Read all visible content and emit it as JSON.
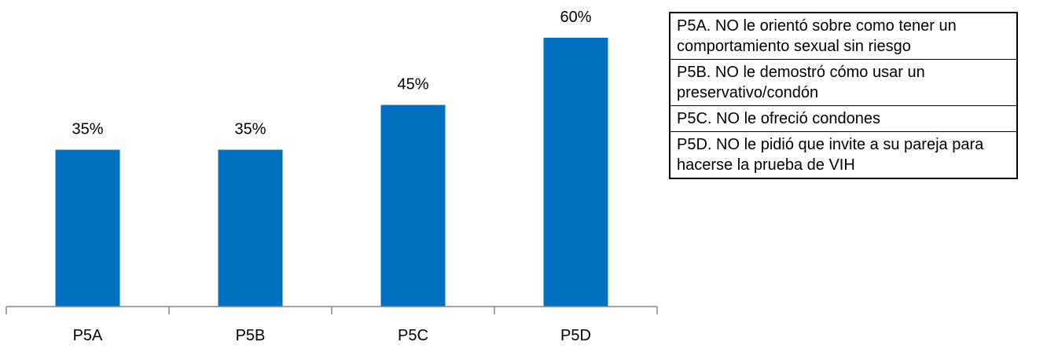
{
  "chart_data": {
    "type": "bar",
    "categories": [
      "P5A",
      "P5B",
      "P5C",
      "P5D"
    ],
    "values": [
      35,
      35,
      45,
      60
    ],
    "data_labels": [
      "35%",
      "35%",
      "45%",
      "60%"
    ],
    "ylim": [
      0,
      70
    ],
    "grid": false,
    "bar_color": "#0070C0",
    "axis_color": "#868686"
  },
  "legend_table": {
    "rows": [
      "P5A. NO le orientó sobre como tener un comportamiento sexual sin riesgo",
      "P5B. NO le demostró cómo usar un preservativo/condón",
      "P5C. NO le ofreció condones",
      "P5D. NO le pidió que invite a su pareja para hacerse la prueba de VIH"
    ]
  }
}
